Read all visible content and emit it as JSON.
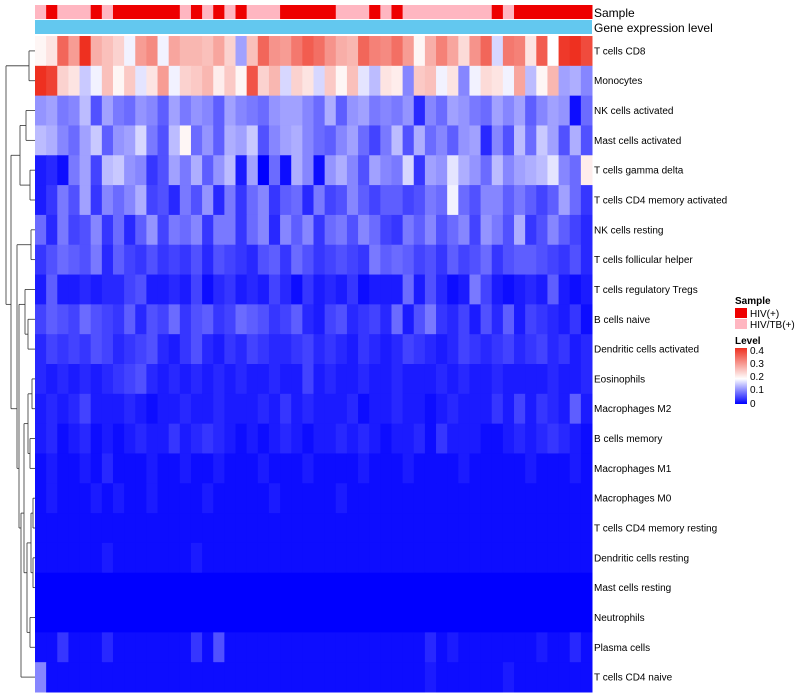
{
  "chart_data": {
    "type": "heatmap",
    "title": "",
    "column_annotations": [
      {
        "name": "Sample",
        "label": "Sample"
      },
      {
        "name": "Gene expression level",
        "label": "Gene expression level",
        "color": "#63c8ef"
      }
    ],
    "sample_groups": [
      "HIV/TB(+)",
      "HIV(+)",
      "HIV/TB(+)",
      "HIV/TB(+)",
      "HIV/TB(+)",
      "HIV(+)",
      "HIV/TB(+)",
      "HIV(+)",
      "HIV(+)",
      "HIV(+)",
      "HIV(+)",
      "HIV(+)",
      "HIV(+)",
      "HIV/TB(+)",
      "HIV(+)",
      "HIV/TB(+)",
      "HIV(+)",
      "HIV/TB(+)",
      "HIV(+)",
      "HIV/TB(+)",
      "HIV/TB(+)",
      "HIV/TB(+)",
      "HIV(+)",
      "HIV(+)",
      "HIV(+)",
      "HIV(+)",
      "HIV(+)",
      "HIV/TB(+)",
      "HIV/TB(+)",
      "HIV/TB(+)",
      "HIV(+)",
      "HIV/TB(+)",
      "HIV(+)",
      "HIV/TB(+)",
      "HIV/TB(+)",
      "HIV/TB(+)",
      "HIV/TB(+)",
      "HIV/TB(+)",
      "HIV/TB(+)",
      "HIV/TB(+)",
      "HIV/TB(+)",
      "HIV(+)",
      "HIV/TB(+)",
      "HIV(+)",
      "HIV(+)",
      "HIV(+)",
      "HIV(+)",
      "HIV(+)",
      "HIV(+)",
      "HIV(+)"
    ],
    "rows": [
      "T cells CD8",
      "Monocytes",
      "NK cells activated",
      "Mast cells activated",
      "T cells gamma delta",
      "T cells CD4 memory activated",
      "NK cells resting",
      "T cells follicular helper",
      "T cells regulatory  Tregs",
      "B cells naive",
      "Dendritic cells activated",
      "Eosinophils",
      "Macrophages M2",
      "B cells memory",
      "Macrophages M1",
      "Macrophages M0",
      "T cells CD4 memory resting",
      "Dendritic cells resting",
      "Mast cells resting",
      "Neutrophils",
      "Plasma cells",
      "T cells CD4 naive"
    ],
    "values": [
      [
        0.2,
        0.22,
        0.36,
        0.3,
        0.42,
        0.28,
        0.26,
        0.24,
        0.18,
        0.3,
        0.32,
        0.18,
        0.29,
        0.27,
        0.27,
        0.26,
        0.29,
        0.24,
        0.12,
        0.26,
        0.36,
        0.31,
        0.3,
        0.34,
        0.37,
        0.35,
        0.31,
        0.28,
        0.27,
        0.36,
        0.33,
        0.32,
        0.35,
        0.3,
        0.2,
        0.28,
        0.33,
        0.29,
        0.23,
        0.31,
        0.36,
        0.16,
        0.34,
        0.33,
        0.22,
        0.37,
        0.19,
        0.41,
        0.42,
        0.39
      ],
      [
        0.42,
        0.4,
        0.24,
        0.22,
        0.15,
        0.18,
        0.26,
        0.2,
        0.25,
        0.17,
        0.22,
        0.3,
        0.18,
        0.24,
        0.25,
        0.27,
        0.21,
        0.25,
        0.2,
        0.38,
        0.24,
        0.27,
        0.16,
        0.24,
        0.22,
        0.16,
        0.25,
        0.2,
        0.26,
        0.17,
        0.14,
        0.22,
        0.21,
        0.1,
        0.25,
        0.26,
        0.18,
        0.22,
        0.1,
        0.18,
        0.23,
        0.22,
        0.18,
        0.29,
        0.14,
        0.2,
        0.27,
        0.12,
        0.13,
        0.1
      ],
      [
        0.11,
        0.12,
        0.09,
        0.1,
        0.14,
        0.06,
        0.12,
        0.09,
        0.08,
        0.11,
        0.1,
        0.07,
        0.12,
        0.09,
        0.11,
        0.1,
        0.07,
        0.12,
        0.1,
        0.09,
        0.08,
        0.11,
        0.12,
        0.12,
        0.1,
        0.08,
        0.13,
        0.07,
        0.11,
        0.12,
        0.09,
        0.1,
        0.09,
        0.11,
        0.03,
        0.1,
        0.08,
        0.12,
        0.11,
        0.09,
        0.08,
        0.12,
        0.1,
        0.12,
        0.07,
        0.1,
        0.12,
        0.11,
        0.01,
        0.08
      ],
      [
        0.14,
        0.13,
        0.1,
        0.08,
        0.12,
        0.15,
        0.07,
        0.11,
        0.12,
        0.16,
        0.09,
        0.06,
        0.14,
        0.2,
        0.08,
        0.11,
        0.07,
        0.13,
        0.12,
        0.15,
        0.06,
        0.1,
        0.12,
        0.13,
        0.1,
        0.08,
        0.07,
        0.1,
        0.12,
        0.08,
        0.05,
        0.09,
        0.14,
        0.06,
        0.13,
        0.08,
        0.1,
        0.07,
        0.11,
        0.12,
        0.03,
        0.1,
        0.06,
        0.14,
        0.08,
        0.15,
        0.12,
        0.06,
        0.13,
        0.06
      ],
      [
        0.02,
        0.03,
        0.01,
        0.09,
        0.12,
        0.05,
        0.14,
        0.15,
        0.11,
        0.1,
        0.04,
        0.06,
        0.12,
        0.09,
        0.13,
        0.07,
        0.11,
        0.14,
        0.02,
        0.12,
        0.0,
        0.08,
        0.01,
        0.13,
        0.1,
        0.01,
        0.11,
        0.13,
        0.1,
        0.06,
        0.12,
        0.1,
        0.09,
        0.16,
        0.04,
        0.12,
        0.11,
        0.17,
        0.13,
        0.11,
        0.08,
        0.14,
        0.1,
        0.12,
        0.13,
        0.14,
        0.17,
        0.1,
        0.08,
        0.21
      ],
      [
        0.02,
        0.04,
        0.09,
        0.06,
        0.12,
        0.04,
        0.1,
        0.08,
        0.1,
        0.13,
        0.05,
        0.06,
        0.03,
        0.09,
        0.06,
        0.11,
        0.03,
        0.09,
        0.04,
        0.08,
        0.1,
        0.04,
        0.07,
        0.08,
        0.03,
        0.09,
        0.05,
        0.06,
        0.1,
        0.07,
        0.05,
        0.07,
        0.07,
        0.05,
        0.06,
        0.09,
        0.08,
        0.18,
        0.08,
        0.06,
        0.1,
        0.1,
        0.07,
        0.09,
        0.07,
        0.05,
        0.07,
        0.12,
        0.08,
        0.04
      ],
      [
        0.08,
        0.03,
        0.09,
        0.05,
        0.06,
        0.1,
        0.04,
        0.08,
        0.03,
        0.07,
        0.11,
        0.05,
        0.09,
        0.08,
        0.1,
        0.04,
        0.09,
        0.09,
        0.04,
        0.08,
        0.1,
        0.03,
        0.1,
        0.07,
        0.1,
        0.04,
        0.08,
        0.09,
        0.06,
        0.1,
        0.08,
        0.05,
        0.04,
        0.09,
        0.07,
        0.1,
        0.06,
        0.08,
        0.1,
        0.05,
        0.11,
        0.09,
        0.06,
        0.13,
        0.04,
        0.06,
        0.1,
        0.07,
        0.05,
        0.03
      ],
      [
        0.04,
        0.06,
        0.08,
        0.07,
        0.06,
        0.09,
        0.03,
        0.07,
        0.05,
        0.04,
        0.06,
        0.04,
        0.05,
        0.04,
        0.06,
        0.03,
        0.06,
        0.05,
        0.04,
        0.03,
        0.06,
        0.07,
        0.04,
        0.08,
        0.06,
        0.04,
        0.05,
        0.06,
        0.05,
        0.04,
        0.09,
        0.07,
        0.08,
        0.07,
        0.05,
        0.06,
        0.04,
        0.07,
        0.05,
        0.06,
        0.08,
        0.04,
        0.06,
        0.07,
        0.07,
        0.06,
        0.05,
        0.04,
        0.06,
        0.03
      ],
      [
        0.02,
        0.07,
        0.02,
        0.02,
        0.03,
        0.02,
        0.03,
        0.03,
        0.05,
        0.06,
        0.02,
        0.02,
        0.03,
        0.02,
        0.05,
        0.01,
        0.03,
        0.04,
        0.02,
        0.03,
        0.02,
        0.05,
        0.03,
        0.01,
        0.04,
        0.02,
        0.03,
        0.02,
        0.04,
        0.01,
        0.02,
        0.02,
        0.02,
        0.08,
        0.02,
        0.06,
        0.03,
        0.01,
        0.02,
        0.09,
        0.05,
        0.02,
        0.01,
        0.02,
        0.03,
        0.02,
        0.07,
        0.02,
        0.01,
        0.02
      ],
      [
        0.05,
        0.07,
        0.06,
        0.05,
        0.08,
        0.06,
        0.05,
        0.04,
        0.07,
        0.03,
        0.06,
        0.05,
        0.08,
        0.04,
        0.06,
        0.07,
        0.04,
        0.05,
        0.08,
        0.07,
        0.06,
        0.04,
        0.05,
        0.07,
        0.03,
        0.02,
        0.05,
        0.06,
        0.03,
        0.04,
        0.05,
        0.03,
        0.08,
        0.02,
        0.06,
        0.09,
        0.04,
        0.03,
        0.05,
        0.02,
        0.06,
        0.03,
        0.07,
        0.02,
        0.05,
        0.04,
        0.03,
        0.02,
        0.04,
        0.01
      ],
      [
        0.03,
        0.05,
        0.04,
        0.05,
        0.04,
        0.06,
        0.05,
        0.03,
        0.04,
        0.05,
        0.06,
        0.03,
        0.02,
        0.04,
        0.06,
        0.03,
        0.02,
        0.04,
        0.03,
        0.05,
        0.04,
        0.03,
        0.03,
        0.04,
        0.05,
        0.03,
        0.04,
        0.03,
        0.02,
        0.04,
        0.03,
        0.02,
        0.03,
        0.05,
        0.04,
        0.03,
        0.02,
        0.03,
        0.05,
        0.04,
        0.03,
        0.04,
        0.05,
        0.03,
        0.04,
        0.05,
        0.03,
        0.04,
        0.02,
        0.03
      ],
      [
        0.03,
        0.02,
        0.03,
        0.02,
        0.03,
        0.02,
        0.03,
        0.04,
        0.05,
        0.06,
        0.03,
        0.02,
        0.03,
        0.02,
        0.03,
        0.02,
        0.03,
        0.02,
        0.03,
        0.02,
        0.02,
        0.03,
        0.02,
        0.02,
        0.05,
        0.02,
        0.03,
        0.02,
        0.02,
        0.03,
        0.02,
        0.02,
        0.03,
        0.02,
        0.02,
        0.02,
        0.03,
        0.02,
        0.03,
        0.02,
        0.02,
        0.03,
        0.02,
        0.02,
        0.02,
        0.02,
        0.03,
        0.02,
        0.02,
        0.03
      ],
      [
        0.02,
        0.03,
        0.02,
        0.03,
        0.05,
        0.02,
        0.02,
        0.02,
        0.03,
        0.02,
        0.01,
        0.02,
        0.02,
        0.03,
        0.02,
        0.02,
        0.03,
        0.02,
        0.02,
        0.02,
        0.03,
        0.02,
        0.04,
        0.02,
        0.03,
        0.02,
        0.02,
        0.02,
        0.03,
        0.01,
        0.02,
        0.02,
        0.03,
        0.02,
        0.02,
        0.01,
        0.02,
        0.03,
        0.02,
        0.02,
        0.02,
        0.04,
        0.02,
        0.05,
        0.02,
        0.04,
        0.03,
        0.02,
        0.07,
        0.02
      ],
      [
        0.02,
        0.03,
        0.01,
        0.02,
        0.03,
        0.01,
        0.02,
        0.01,
        0.02,
        0.03,
        0.02,
        0.02,
        0.04,
        0.02,
        0.03,
        0.04,
        0.03,
        0.02,
        0.01,
        0.02,
        0.01,
        0.02,
        0.03,
        0.02,
        0.01,
        0.02,
        0.02,
        0.03,
        0.02,
        0.03,
        0.02,
        0.01,
        0.02,
        0.02,
        0.03,
        0.01,
        0.04,
        0.02,
        0.02,
        0.02,
        0.01,
        0.01,
        0.02,
        0.03,
        0.02,
        0.03,
        0.04,
        0.03,
        0.02,
        0.01
      ],
      [
        0.01,
        0.02,
        0.01,
        0.01,
        0.02,
        0.01,
        0.03,
        0.01,
        0.01,
        0.01,
        0.02,
        0.01,
        0.01,
        0.02,
        0.01,
        0.01,
        0.02,
        0.01,
        0.01,
        0.01,
        0.02,
        0.01,
        0.01,
        0.01,
        0.02,
        0.01,
        0.01,
        0.01,
        0.01,
        0.02,
        0.01,
        0.01,
        0.01,
        0.02,
        0.01,
        0.01,
        0.01,
        0.01,
        0.02,
        0.01,
        0.01,
        0.01,
        0.01,
        0.01,
        0.02,
        0.01,
        0.01,
        0.01,
        0.02,
        0.01
      ],
      [
        0.01,
        0.02,
        0.01,
        0.01,
        0.01,
        0.02,
        0.01,
        0.02,
        0.01,
        0.01,
        0.02,
        0.01,
        0.01,
        0.01,
        0.01,
        0.02,
        0.01,
        0.01,
        0.01,
        0.01,
        0.01,
        0.02,
        0.01,
        0.01,
        0.01,
        0.01,
        0.01,
        0.02,
        0.01,
        0.01,
        0.01,
        0.01,
        0.01,
        0.01,
        0.01,
        0.01,
        0.01,
        0.01,
        0.01,
        0.01,
        0.01,
        0.01,
        0.01,
        0.01,
        0.01,
        0.01,
        0.01,
        0.01,
        0.01,
        0.01
      ],
      [
        0.01,
        0.01,
        0.01,
        0.01,
        0.01,
        0.01,
        0.01,
        0.01,
        0.01,
        0.01,
        0.01,
        0.01,
        0.01,
        0.01,
        0.01,
        0.01,
        0.01,
        0.01,
        0.01,
        0.01,
        0.01,
        0.01,
        0.01,
        0.01,
        0.01,
        0.01,
        0.01,
        0.01,
        0.01,
        0.01,
        0.01,
        0.01,
        0.01,
        0.01,
        0.01,
        0.01,
        0.01,
        0.01,
        0.01,
        0.01,
        0.01,
        0.01,
        0.01,
        0.01,
        0.01,
        0.01,
        0.01,
        0.01,
        0.01,
        0.01
      ],
      [
        0.01,
        0.01,
        0.01,
        0.01,
        0.01,
        0.01,
        0.02,
        0.01,
        0.01,
        0.01,
        0.01,
        0.01,
        0.01,
        0.01,
        0.02,
        0.01,
        0.01,
        0.01,
        0.01,
        0.01,
        0.01,
        0.01,
        0.01,
        0.01,
        0.01,
        0.01,
        0.01,
        0.01,
        0.01,
        0.01,
        0.01,
        0.01,
        0.01,
        0.01,
        0.01,
        0.01,
        0.01,
        0.01,
        0.01,
        0.01,
        0.01,
        0.01,
        0.01,
        0.01,
        0.01,
        0.01,
        0.01,
        0.01,
        0.01,
        0.01
      ],
      [
        0.0,
        0.0,
        0.0,
        0.0,
        0.0,
        0.0,
        0.0,
        0.0,
        0.0,
        0.0,
        0.0,
        0.0,
        0.0,
        0.0,
        0.0,
        0.0,
        0.0,
        0.0,
        0.0,
        0.0,
        0.0,
        0.0,
        0.0,
        0.0,
        0.0,
        0.0,
        0.0,
        0.0,
        0.0,
        0.0,
        0.0,
        0.0,
        0.0,
        0.0,
        0.0,
        0.0,
        0.0,
        0.0,
        0.0,
        0.0,
        0.0,
        0.0,
        0.0,
        0.0,
        0.0,
        0.0,
        0.0,
        0.0,
        0.0,
        0.0
      ],
      [
        0.0,
        0.0,
        0.0,
        0.0,
        0.0,
        0.0,
        0.0,
        0.0,
        0.0,
        0.0,
        0.0,
        0.0,
        0.0,
        0.0,
        0.0,
        0.0,
        0.0,
        0.0,
        0.0,
        0.0,
        0.0,
        0.0,
        0.0,
        0.0,
        0.0,
        0.0,
        0.0,
        0.0,
        0.0,
        0.0,
        0.0,
        0.0,
        0.0,
        0.0,
        0.0,
        0.0,
        0.0,
        0.0,
        0.0,
        0.0,
        0.0,
        0.0,
        0.0,
        0.0,
        0.0,
        0.0,
        0.0,
        0.0,
        0.0,
        0.0
      ],
      [
        0.01,
        0.01,
        0.04,
        0.01,
        0.01,
        0.01,
        0.03,
        0.01,
        0.01,
        0.01,
        0.01,
        0.01,
        0.01,
        0.01,
        0.04,
        0.01,
        0.06,
        0.01,
        0.01,
        0.01,
        0.01,
        0.01,
        0.01,
        0.01,
        0.01,
        0.01,
        0.01,
        0.01,
        0.01,
        0.01,
        0.01,
        0.01,
        0.01,
        0.01,
        0.01,
        0.03,
        0.01,
        0.02,
        0.01,
        0.01,
        0.01,
        0.01,
        0.01,
        0.01,
        0.01,
        0.02,
        0.01,
        0.01,
        0.03,
        0.01
      ],
      [
        0.1,
        0.01,
        0.01,
        0.01,
        0.01,
        0.01,
        0.01,
        0.01,
        0.01,
        0.01,
        0.01,
        0.01,
        0.01,
        0.01,
        0.01,
        0.01,
        0.01,
        0.01,
        0.01,
        0.01,
        0.01,
        0.01,
        0.01,
        0.01,
        0.01,
        0.01,
        0.01,
        0.01,
        0.01,
        0.01,
        0.01,
        0.01,
        0.01,
        0.01,
        0.01,
        0.02,
        0.01,
        0.01,
        0.01,
        0.01,
        0.01,
        0.01,
        0.02,
        0.01,
        0.01,
        0.01,
        0.01,
        0.01,
        0.01,
        0.01
      ]
    ],
    "legend": {
      "sample_title": "Sample",
      "groups": [
        {
          "label": "HIV(+)",
          "color": "#ee0000"
        },
        {
          "label": "HIV/TB(+)",
          "color": "#ffb6c1"
        }
      ],
      "level_title": "Level",
      "ticks": [
        "0.4",
        "0.3",
        "0.2",
        "0.1",
        "0"
      ],
      "range": [
        0,
        0.42
      ],
      "color_low": "#0000ff",
      "color_mid": "#ffffff",
      "color_high": "#ee3020"
    },
    "dendrogram": "hierarchical clustering of rows"
  }
}
